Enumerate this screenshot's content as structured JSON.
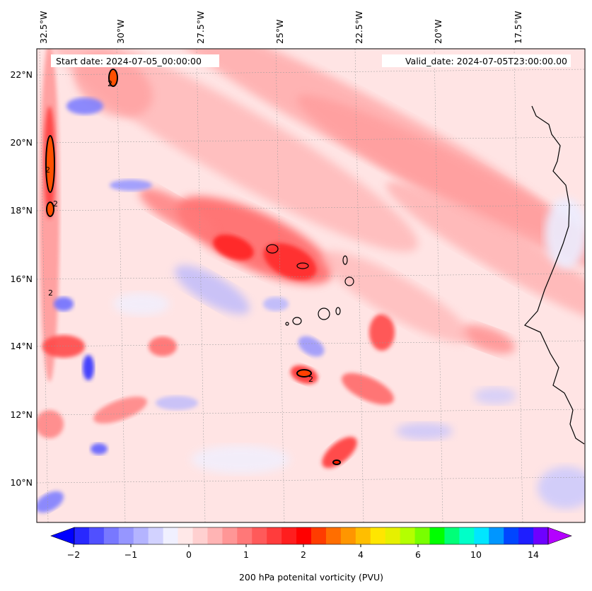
{
  "map": {
    "start_date": "Start date: 2024-07-05_00:00:00",
    "valid_date": "Valid_date: 2024-07-05T23:00:00.00",
    "lon_labels": [
      "32.5°W",
      "30°W",
      "27.5°W",
      "25°W",
      "22.5°W",
      "20°W",
      "17.5°W"
    ],
    "lat_labels": [
      "22°N",
      "20°N",
      "18°N",
      "16°N",
      "14°N",
      "12°N",
      "10°N"
    ],
    "contour_label": "2",
    "colors": {
      "land_outline": "#000000",
      "pv_low": "#ffe8e8",
      "pv_mid": "#ff9090",
      "pv_high": "#ff3030",
      "pv_negative": "#b4b4ff"
    }
  },
  "colorbar": {
    "ticks": [
      "−2",
      "−1",
      "0",
      "1",
      "2",
      "4",
      "6",
      "10",
      "14"
    ],
    "title": "200 hPa potenital vorticity (PVU)",
    "colors": [
      "#0000ff",
      "#2828ff",
      "#5050ff",
      "#7878ff",
      "#9696ff",
      "#b4b4ff",
      "#d2d2ff",
      "#f0f0ff",
      "#ffe8e8",
      "#ffd0d0",
      "#ffb4b4",
      "#ff9696",
      "#ff7878",
      "#ff5a5a",
      "#ff3c3c",
      "#ff1e1e",
      "#ff0000",
      "#ff3c00",
      "#ff6e00",
      "#ff9600",
      "#ffbe00",
      "#ffe600",
      "#e6f000",
      "#b4ff00",
      "#78ff00",
      "#00ff00",
      "#00ff78",
      "#00ffc8",
      "#00e6ff",
      "#0096ff",
      "#0046ff",
      "#1e1eff",
      "#6e00ff",
      "#b400ff"
    ]
  }
}
